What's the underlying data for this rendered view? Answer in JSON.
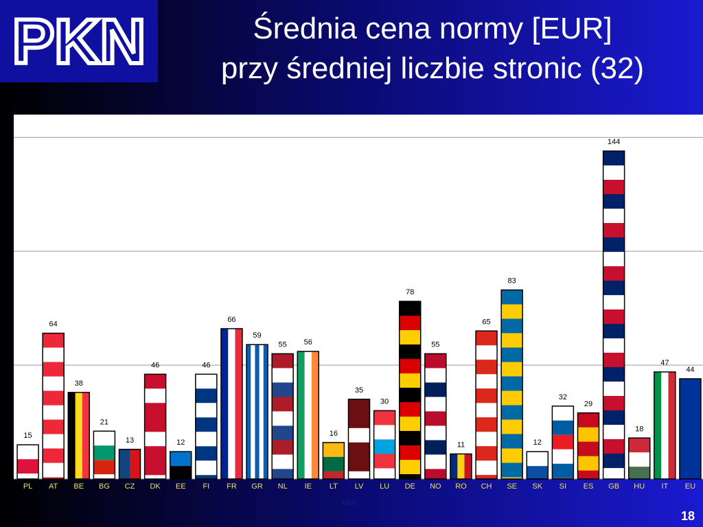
{
  "logo": "PKN",
  "slide_number": 18,
  "chart_data": {
    "type": "bar",
    "title": [
      "Średnia cena normy [EUR]",
      "przy średniej liczbie stronic (32)"
    ],
    "x_label": "KRAJ",
    "categories": [
      "PL",
      "AT",
      "BE",
      "BG",
      "CZ",
      "DK",
      "EE",
      "FI",
      "FR",
      "GR",
      "NL",
      "IE",
      "LT",
      "LV",
      "LU",
      "DE",
      "NO",
      "RO",
      "CH",
      "SE",
      "SK",
      "SI",
      "ES",
      "GB",
      "HU",
      "IT",
      "EU"
    ],
    "values": [
      15,
      64,
      38,
      21,
      13,
      46,
      12,
      46,
      66,
      59,
      55,
      56,
      16,
      35,
      30,
      78,
      55,
      11,
      65,
      83,
      12,
      32,
      29,
      144,
      18,
      47,
      44
    ],
    "colors": [
      [
        "#ffffff",
        "#dc143c"
      ],
      [
        "#ed2939",
        "#ffffff"
      ],
      [
        "#000000",
        "#fdda24",
        "#ef3340"
      ],
      [
        "#ffffff",
        "#00966e",
        "#d62612"
      ],
      [
        "#11457e",
        "#d7141a"
      ],
      [
        "#c8102e",
        "#ffffff",
        "#c8102e"
      ],
      [
        "#0072ce",
        "#000000",
        "#ffffff"
      ],
      [
        "#ffffff",
        "#003580"
      ],
      [
        "#002395",
        "#ffffff",
        "#ed2939"
      ],
      [
        "#0d5eaf",
        "#ffffff",
        "#0d5eaf",
        "#ffffff",
        "#0d5eaf"
      ],
      [
        "#ae1c28",
        "#ffffff",
        "#21468b"
      ],
      [
        "#169b62",
        "#ffffff",
        "#ff883e"
      ],
      [
        "#fdb913",
        "#006a44",
        "#c1272d"
      ],
      [
        "#6b0f12",
        "#6b0f12",
        "#ffffff"
      ],
      [
        "#ef3340",
        "#ffffff",
        "#00a3e0"
      ],
      [
        "#000000",
        "#dd0000",
        "#ffce00"
      ],
      [
        "#ba0c2f",
        "#ffffff",
        "#00205b",
        "#ffffff"
      ],
      [
        "#002b7f",
        "#fcd116",
        "#ce1126"
      ],
      [
        "#da291c",
        "#ffffff"
      ],
      [
        "#006aa7",
        "#fecc00"
      ],
      [
        "#ffffff",
        "#0b4ea2",
        "#ee1c25"
      ],
      [
        "#ffffff",
        "#005da4",
        "#ed1c24"
      ],
      [
        "#c60b1e",
        "#ffc400"
      ],
      [
        "#012169",
        "#ffffff",
        "#c8102e"
      ],
      [
        "#ce2939",
        "#ffffff",
        "#477050"
      ],
      [
        "#009246",
        "#ffffff",
        "#ce2b37"
      ],
      [
        "#003399"
      ]
    ],
    "stripe_direction": [
      "h",
      "h",
      "v",
      "h",
      "v",
      "h",
      "h",
      "h",
      "v",
      "v",
      "h",
      "v",
      "h",
      "h",
      "h",
      "h",
      "h",
      "v",
      "h",
      "h",
      "h",
      "h",
      "h",
      "h",
      "h",
      "v",
      "h"
    ],
    "ylim": [
      0,
      160
    ],
    "yticks": [
      0,
      50,
      100,
      150
    ],
    "grid": true
  }
}
